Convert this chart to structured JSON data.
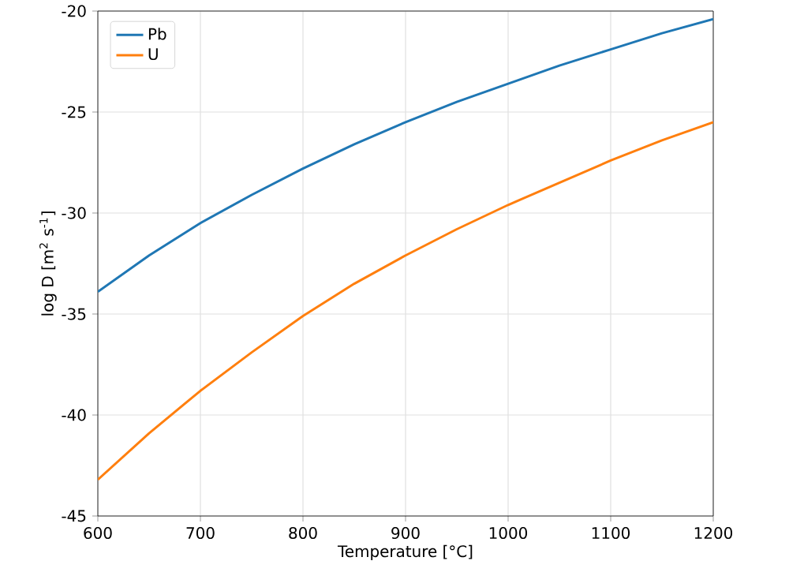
{
  "chart_data": {
    "type": "line",
    "xlabel": "Temperature [°C]",
    "ylabel": "log D [m$^{2}$ s$^{-1}$]",
    "x": [
      600,
      650,
      700,
      750,
      800,
      850,
      900,
      950,
      1000,
      1050,
      1100,
      1150,
      1200
    ],
    "series": [
      {
        "name": "Pb",
        "color": "#1f77b4",
        "values": [
          -33.9,
          -32.1,
          -30.5,
          -29.1,
          -27.8,
          -26.6,
          -25.5,
          -24.5,
          -23.6,
          -22.7,
          -21.9,
          -21.1,
          -20.4
        ]
      },
      {
        "name": "U",
        "color": "#ff7f0e",
        "values": [
          -43.2,
          -40.9,
          -38.8,
          -36.9,
          -35.1,
          -33.5,
          -32.1,
          -30.8,
          -29.6,
          -28.5,
          -27.4,
          -26.4,
          -25.5
        ]
      }
    ],
    "xlim": [
      600,
      1200
    ],
    "ylim": [
      -45,
      -20
    ],
    "xticks": [
      600,
      700,
      800,
      900,
      1000,
      1100,
      1200
    ],
    "yticks": [
      -45,
      -40,
      -35,
      -30,
      -25,
      -20
    ],
    "grid": true,
    "legend": "top left",
    "marker": "none",
    "line_style": "solid"
  }
}
